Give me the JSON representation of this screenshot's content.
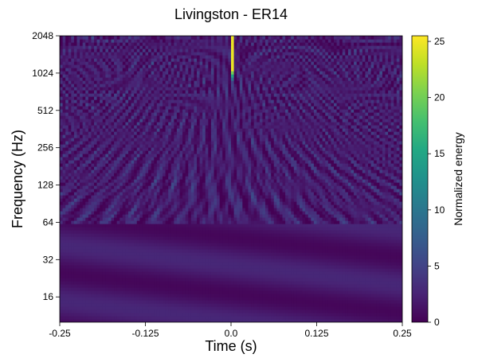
{
  "chart_data": {
    "type": "heatmap",
    "title": "Livingston - ER14",
    "xlabel": "Time (s)",
    "ylabel": "Frequency (Hz)",
    "colorbar_label": "Normalized energy",
    "colormap": "viridis",
    "xlim": [
      -0.25,
      0.25
    ],
    "ylim": [
      10,
      2048
    ],
    "yscale": "log",
    "clim": [
      0,
      25.5
    ],
    "x_ticks": [
      -0.25,
      -0.125,
      0.0,
      0.125,
      0.25
    ],
    "x_tick_labels": [
      "-0.25",
      "-0.125",
      "0.0",
      "0.125",
      "0.25"
    ],
    "y_ticks": [
      16,
      32,
      64,
      128,
      256,
      512,
      1024,
      2048
    ],
    "y_tick_labels": [
      "16",
      "32",
      "64",
      "128",
      "256",
      "512",
      "1024",
      "2048"
    ],
    "colorbar_ticks": [
      0,
      5,
      10,
      15,
      20,
      25
    ],
    "colorbar_tick_labels": [
      "0",
      "5",
      "10",
      "15",
      "20",
      "25"
    ],
    "peak": {
      "time": 0.002,
      "freq_low": 900,
      "freq_high": 2048,
      "energy": 25.3
    },
    "background_energy": 2,
    "grid": false,
    "legend": "none"
  }
}
